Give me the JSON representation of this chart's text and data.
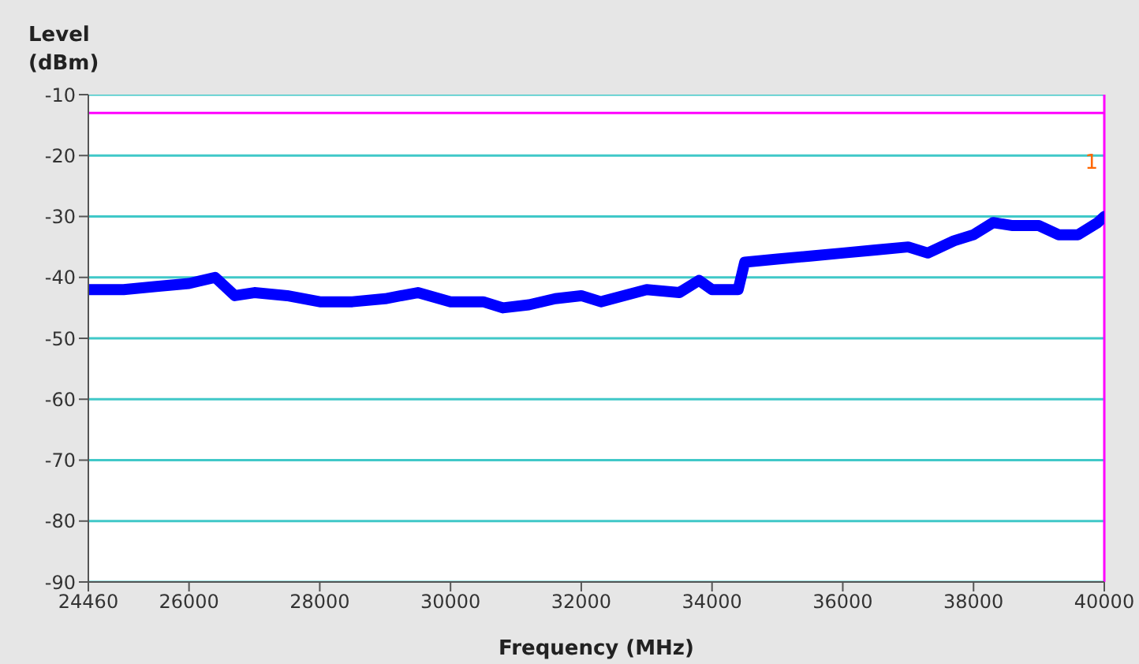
{
  "chart_data": {
    "type": "line",
    "xlabel": "Frequency (MHz)",
    "ylabel": "Level (dBm)",
    "x": [
      24460,
      25000,
      25500,
      26000,
      26400,
      26700,
      27000,
      27500,
      28000,
      28500,
      29000,
      29500,
      30000,
      30500,
      30800,
      31200,
      31600,
      32000,
      32300,
      33000,
      33500,
      33800,
      34000,
      34400,
      34500,
      35000,
      35500,
      36000,
      36500,
      37000,
      37300,
      37700,
      38000,
      38300,
      38600,
      39000,
      39300,
      39600,
      39900,
      40000
    ],
    "series": [
      {
        "color": "#0000ff",
        "values": [
          -42,
          -42,
          -41.5,
          -41,
          -40,
          -43,
          -42.5,
          -43,
          -44,
          -44,
          -43.5,
          -42.5,
          -44,
          -44,
          -45,
          -44.5,
          -43.5,
          -43,
          -44,
          -42,
          -42.5,
          -40.5,
          -42,
          -42,
          -37.5,
          -37,
          -36.5,
          -36,
          -35.5,
          -35,
          -36,
          -34,
          -33,
          -31,
          -31.5,
          -31.5,
          -33,
          -33,
          -31,
          -30
        ]
      }
    ],
    "xlim": [
      24460,
      40000
    ],
    "xticks": [
      24460,
      26000,
      28000,
      30000,
      32000,
      34000,
      36000,
      38000,
      40000
    ],
    "ylim": [
      -90,
      -10
    ],
    "yticks": [
      -90,
      -80,
      -70,
      -60,
      -50,
      -40,
      -30,
      -20,
      -10
    ],
    "grid": true,
    "ref_lines": [
      {
        "axis": "y",
        "value": -13,
        "color": "#ff00ff"
      },
      {
        "axis": "x",
        "value": 40000,
        "color": "#ff00ff"
      }
    ],
    "annotations": [
      {
        "text": "1",
        "x": 40000,
        "y": -21
      }
    ],
    "marker": "none",
    "line_style": "solid"
  }
}
